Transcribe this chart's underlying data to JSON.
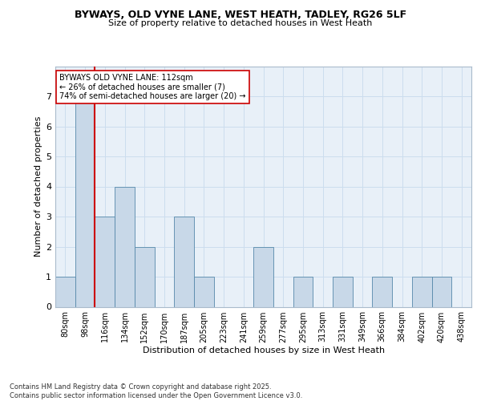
{
  "title1": "BYWAYS, OLD VYNE LANE, WEST HEATH, TADLEY, RG26 5LF",
  "title2": "Size of property relative to detached houses in West Heath",
  "xlabel": "Distribution of detached houses by size in West Heath",
  "ylabel": "Number of detached properties",
  "bin_labels": [
    "80sqm",
    "98sqm",
    "116sqm",
    "134sqm",
    "152sqm",
    "170sqm",
    "187sqm",
    "205sqm",
    "223sqm",
    "241sqm",
    "259sqm",
    "277sqm",
    "295sqm",
    "313sqm",
    "331sqm",
    "349sqm",
    "366sqm",
    "384sqm",
    "402sqm",
    "420sqm",
    "438sqm"
  ],
  "bar_heights": [
    1,
    7,
    3,
    4,
    2,
    0,
    3,
    1,
    0,
    0,
    2,
    0,
    1,
    0,
    1,
    0,
    1,
    0,
    1,
    1,
    0
  ],
  "bar_color": "#c8d8e8",
  "bar_edge_color": "#5588aa",
  "annotation_text": "BYWAYS OLD VYNE LANE: 112sqm\n← 26% of detached houses are smaller (7)\n74% of semi-detached houses are larger (20) →",
  "annotation_box_color": "#ffffff",
  "annotation_box_edge": "#cc0000",
  "red_line_color": "#cc0000",
  "grid_color": "#ccddee",
  "bg_color": "#e8f0f8",
  "footnote": "Contains HM Land Registry data © Crown copyright and database right 2025.\nContains public sector information licensed under the Open Government Licence v3.0.",
  "ylim": [
    0,
    8
  ],
  "yticks": [
    0,
    1,
    2,
    3,
    4,
    5,
    6,
    7,
    8
  ]
}
